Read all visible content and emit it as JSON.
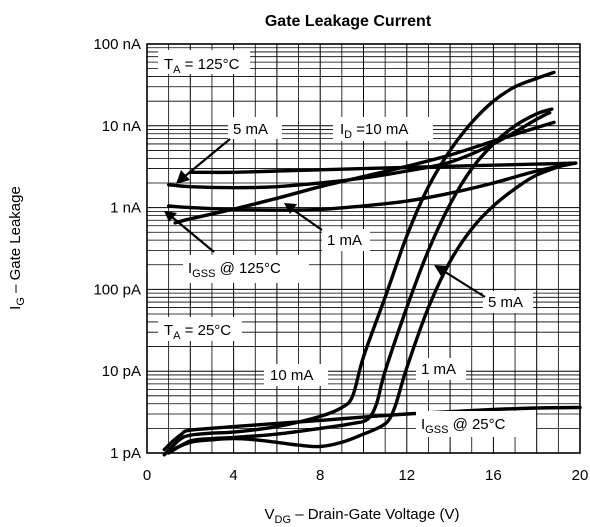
{
  "chart_data": {
    "type": "line",
    "title": "Gate Leakage Current",
    "xlabel": {
      "main": "V",
      "sub": "DG",
      "rest": " – Drain-Gate Voltage (V)"
    },
    "ylabel": {
      "main": "I",
      "sub": "G",
      "rest": " – Gate Leakage"
    },
    "xlim": [
      0,
      20
    ],
    "ylim": [
      1e-12,
      1e-07
    ],
    "yscale": "log",
    "x_ticks": [
      {
        "value": 0,
        "label": "0"
      },
      {
        "value": 4,
        "label": "4"
      },
      {
        "value": 8,
        "label": "8"
      },
      {
        "value": 12,
        "label": "12"
      },
      {
        "value": 16,
        "label": "16"
      },
      {
        "value": 20,
        "label": "20"
      }
    ],
    "y_ticks": [
      {
        "value": 1e-12,
        "label": "1 pA"
      },
      {
        "value": 1e-11,
        "label": "10 pA"
      },
      {
        "value": 1e-10,
        "label": "100 pA"
      },
      {
        "value": 1e-09,
        "label": "1 nA"
      },
      {
        "value": 1e-08,
        "label": "10 nA"
      },
      {
        "value": 1e-07,
        "label": "100 nA"
      }
    ],
    "grid": true,
    "series": [
      {
        "key": "igss125",
        "x": [
          2.0,
          4,
          6,
          8,
          10,
          12,
          14,
          16,
          18,
          19.8
        ],
        "y": [
          2.7e-09,
          2.7e-09,
          2.8e-09,
          2.9e-09,
          3e-09,
          3.1e-09,
          3.2e-09,
          3.3e-09,
          3.4e-09,
          3.5e-09
        ]
      },
      {
        "key": "d5_125",
        "x": [
          1.0,
          2,
          4,
          6,
          8,
          10,
          12,
          14,
          16,
          18,
          18.6
        ],
        "y": [
          1.9e-09,
          1.8e-09,
          1.75e-09,
          1.8e-09,
          2e-09,
          2.3e-09,
          2.8e-09,
          3.6e-09,
          6e-09,
          1.2e-08,
          1.45e-08
        ]
      },
      {
        "key": "d10_125",
        "x": [
          1.3,
          2,
          4,
          6,
          8,
          10,
          12,
          14,
          16,
          18,
          18.8
        ],
        "y": [
          6.5e-10,
          7.3e-10,
          9.6e-10,
          1.3e-09,
          1.8e-09,
          2.4e-09,
          3.2e-09,
          4.4e-09,
          6.5e-09,
          9.5e-09,
          1.1e-08
        ]
      },
      {
        "key": "d1_125",
        "x": [
          1.0,
          2,
          4,
          6,
          8,
          10,
          12,
          14,
          16,
          18,
          19.8
        ],
        "y": [
          1.05e-09,
          1e-09,
          9.5e-10,
          9.3e-10,
          9.5e-10,
          1.05e-09,
          1.2e-09,
          1.5e-09,
          2e-09,
          2.8e-09,
          3.5e-09
        ]
      },
      {
        "key": "igss25",
        "x": [
          0.8,
          1.2,
          1.6,
          2,
          4,
          6,
          8,
          10,
          12,
          14,
          16,
          18,
          20
        ],
        "y": [
          1.1e-12,
          1.4e-12,
          1.7e-12,
          1.9e-12,
          2.1e-12,
          2.3e-12,
          2.5e-12,
          2.75e-12,
          3e-12,
          3.2e-12,
          3.4e-12,
          3.55e-12,
          3.6e-12
        ]
      },
      {
        "key": "d10_25",
        "x": [
          0.8,
          1.5,
          2,
          3,
          4,
          6,
          8,
          9,
          9.5,
          10,
          11,
          12,
          13,
          14,
          15,
          16,
          17,
          18,
          18.8
        ],
        "y": [
          9.5e-13,
          1.45e-12,
          1.65e-12,
          1.75e-12,
          1.8e-12,
          2.1e-12,
          2.8e-12,
          3.6e-12,
          5e-12,
          1.5e-11,
          8e-11,
          4.5e-10,
          1.8e-09,
          5e-09,
          1.1e-08,
          2e-08,
          3e-08,
          3.8e-08,
          4.5e-08
        ]
      },
      {
        "key": "d5_25",
        "x": [
          1.0,
          2,
          3,
          4,
          6,
          8,
          9.5,
          10.2,
          10.6,
          11,
          12,
          13,
          14,
          15,
          16,
          17,
          18,
          18.7
        ],
        "y": [
          1e-12,
          1.4e-12,
          1.5e-12,
          1.55e-12,
          1.7e-12,
          2e-12,
          2.3e-12,
          2.6e-12,
          4e-12,
          1e-11,
          6e-11,
          3e-10,
          1.1e-09,
          3e-09,
          6e-09,
          1e-08,
          1.4e-08,
          1.6e-08
        ]
      },
      {
        "key": "d1_25",
        "x": [
          1.0,
          2,
          3,
          4,
          5,
          6,
          7,
          8,
          9,
          10,
          10.8,
          11.2,
          11.5,
          12,
          13,
          14,
          15,
          16,
          17,
          18,
          19.5
        ],
        "y": [
          1.05e-12,
          1.35e-12,
          1.45e-12,
          1.5e-12,
          1.45e-12,
          1.35e-12,
          1.25e-12,
          1.2e-12,
          1.35e-12,
          1.7e-12,
          2.1e-12,
          2.6e-12,
          4e-12,
          1.1e-11,
          6e-11,
          2.2e-10,
          5.5e-10,
          1.05e-09,
          1.7e-09,
          2.5e-09,
          3.5e-09
        ]
      }
    ],
    "annotations": {
      "ta_125": {
        "main": "T",
        "sub": "A",
        "rest": " = 125°C"
      },
      "ta_25": {
        "main": "T",
        "sub": "A",
        "rest": " = 25°C"
      },
      "ma5_top": "5 mA",
      "id10": {
        "main": "I",
        "sub": "D",
        "rest": " =10 mA"
      },
      "ma1_top": "1 mA",
      "igss125": {
        "main": "I",
        "sub": "GSS",
        "rest": " @ 125°C"
      },
      "ma5_bot": "5 mA",
      "ma10_bot": "10 mA",
      "ma1_bot": "1 mA",
      "igss25": {
        "main": "I",
        "sub": "GSS",
        "rest": " @ 25°C"
      }
    }
  }
}
